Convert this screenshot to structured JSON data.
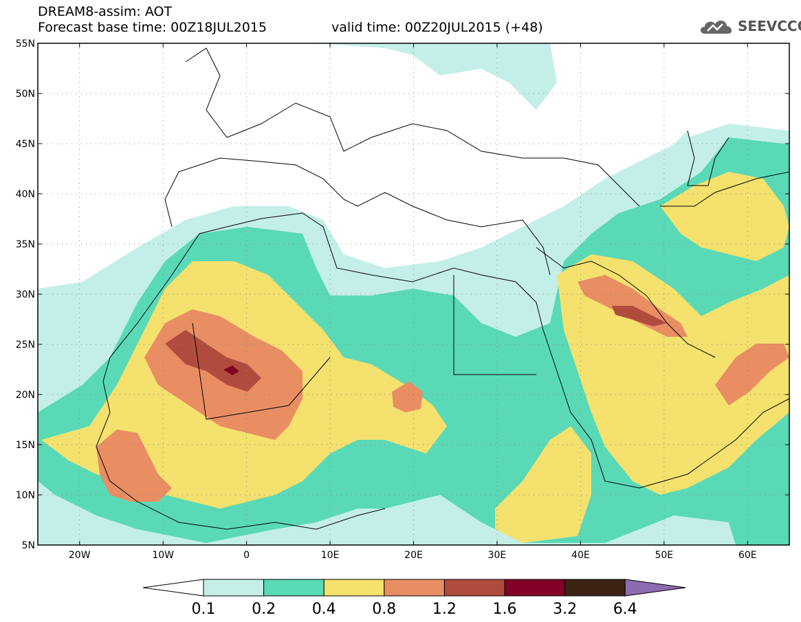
{
  "header": {
    "title": "DREAM8-assim: AOT",
    "base_time": "Forecast base time: 00Z18JUL2015",
    "valid_time": "valid time: 00Z20JUL2015 (+48)",
    "logo_text": "SEEVCCC",
    "logo_icon": "cloud-icon"
  },
  "map": {
    "lon_range": [
      -25,
      65
    ],
    "lat_range": [
      5,
      55
    ],
    "lat_ticks": [
      {
        "value": 55,
        "label": "55N"
      },
      {
        "value": 50,
        "label": "50N"
      },
      {
        "value": 45,
        "label": "45N"
      },
      {
        "value": 40,
        "label": "40N"
      },
      {
        "value": 35,
        "label": "35N"
      },
      {
        "value": 30,
        "label": "30N"
      },
      {
        "value": 25,
        "label": "25N"
      },
      {
        "value": 20,
        "label": "20N"
      },
      {
        "value": 15,
        "label": "15N"
      },
      {
        "value": 10,
        "label": "10N"
      },
      {
        "value": 5,
        "label": "5N"
      }
    ],
    "lon_ticks": [
      {
        "value": -20,
        "label": "20W"
      },
      {
        "value": -10,
        "label": "10W"
      },
      {
        "value": 0,
        "label": "0"
      },
      {
        "value": 10,
        "label": "10E"
      },
      {
        "value": 20,
        "label": "20E"
      },
      {
        "value": 30,
        "label": "30E"
      },
      {
        "value": 40,
        "label": "40E"
      },
      {
        "value": 50,
        "label": "50E"
      },
      {
        "value": 60,
        "label": "60E"
      }
    ],
    "grid": "dotted"
  },
  "colorbar": {
    "levels": [
      "0.1",
      "0.2",
      "0.4",
      "0.8",
      "1.2",
      "1.6",
      "3.2",
      "6.4"
    ],
    "colors": [
      "#ffffff",
      "#c4efe9",
      "#5ad9b7",
      "#f5e16e",
      "#e98d63",
      "#b04c3d",
      "#820025",
      "#3c2314",
      "#8e6bb0"
    ]
  },
  "colors": {
    "c01": "#c4efe9",
    "c02": "#5ad9b7",
    "c04": "#f5e16e",
    "c08": "#e98d63",
    "c12": "#b04c3d",
    "c16": "#820025"
  }
}
